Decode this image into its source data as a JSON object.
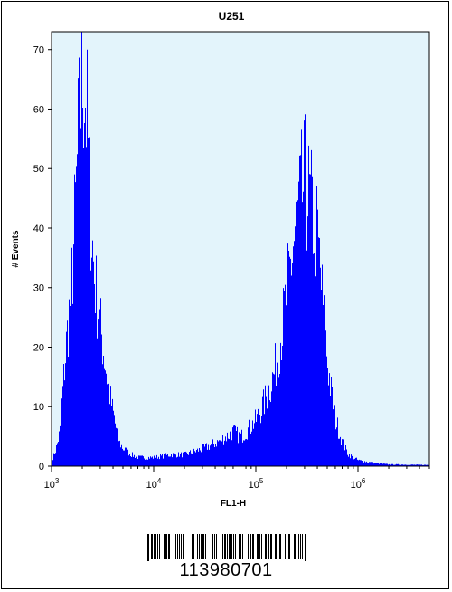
{
  "chart_data": {
    "type": "area",
    "title": "U251",
    "xlabel": "FL1-H",
    "ylabel": "# Events",
    "x_scale": "log",
    "xlim": [
      1000,
      5000000
    ],
    "ylim": [
      0,
      73
    ],
    "x_ticks": [
      {
        "value": 1000,
        "base": "10",
        "exp": "3"
      },
      {
        "value": 10000,
        "base": "10",
        "exp": "4"
      },
      {
        "value": 100000,
        "base": "10",
        "exp": "5"
      },
      {
        "value": 1000000,
        "base": "10",
        "exp": "6"
      }
    ],
    "y_ticks": [
      0,
      10,
      20,
      30,
      40,
      50,
      60,
      70
    ],
    "grid": false,
    "series": [
      {
        "color": "#0000ff",
        "x": [
          1000,
          1100,
          1200,
          1300,
          1400,
          1500,
          1600,
          1700,
          1800,
          1900,
          2000,
          2100,
          2200,
          2300,
          2400,
          2500,
          2600,
          2800,
          3000,
          3200,
          3500,
          3800,
          4200,
          4600,
          5000,
          5500,
          6000,
          7000,
          8000,
          10000,
          15000,
          20000,
          30000,
          40000,
          50000,
          60000,
          70000,
          80000,
          100000,
          120000,
          150000,
          180000,
          200000,
          230000,
          260000,
          280000,
          300000,
          320000,
          350000,
          380000,
          420000,
          460000,
          500000,
          550000,
          600000,
          700000,
          800000,
          900000,
          1000000,
          1500000,
          2000000,
          5000000
        ],
        "values": [
          1,
          3,
          6,
          15,
          22,
          28,
          35,
          45,
          55,
          63,
          68,
          66,
          60,
          52,
          44,
          38,
          33,
          28,
          24,
          20,
          15,
          11,
          7,
          4,
          3,
          2.5,
          2,
          1.5,
          1.5,
          1.5,
          2,
          2,
          3,
          4,
          5,
          6,
          5,
          6,
          8,
          11,
          16,
          24,
          30,
          38,
          44,
          47,
          49,
          47,
          44,
          42,
          35,
          25,
          18,
          12,
          8,
          4,
          2,
          1.5,
          1,
          0.5,
          0.3,
          0.2
        ]
      }
    ]
  },
  "footer": {
    "barcode_number": "113980701"
  }
}
